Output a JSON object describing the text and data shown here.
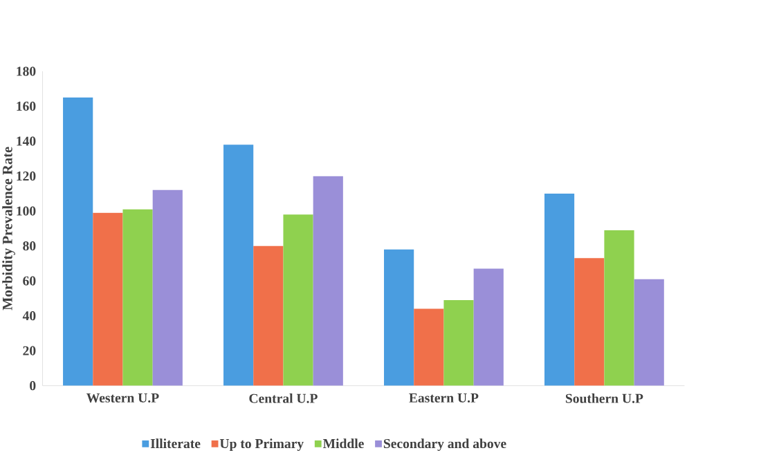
{
  "chart_data": {
    "type": "bar",
    "ylabel": "Morbidity Prevalence Rate",
    "categories": [
      "Western U.P",
      "Central U.P",
      "Eastern U.P",
      "Southern U.P"
    ],
    "series": [
      {
        "name": "Illiterate",
        "color": "#4a9de0",
        "values": [
          165,
          138,
          78,
          110
        ]
      },
      {
        "name": "Up to Primary",
        "color": "#f0704a",
        "values": [
          99,
          80,
          44,
          73
        ]
      },
      {
        "name": "Middle",
        "color": "#8fd14f",
        "values": [
          101,
          98,
          49,
          89
        ]
      },
      {
        "name": "Secondary and above",
        "color": "#9a8fd8",
        "values": [
          112,
          120,
          67,
          61
        ]
      }
    ],
    "ylim": [
      0,
      180
    ],
    "yticks": [
      0,
      20,
      40,
      60,
      80,
      100,
      120,
      140,
      160,
      180
    ],
    "legend": "bottom"
  }
}
